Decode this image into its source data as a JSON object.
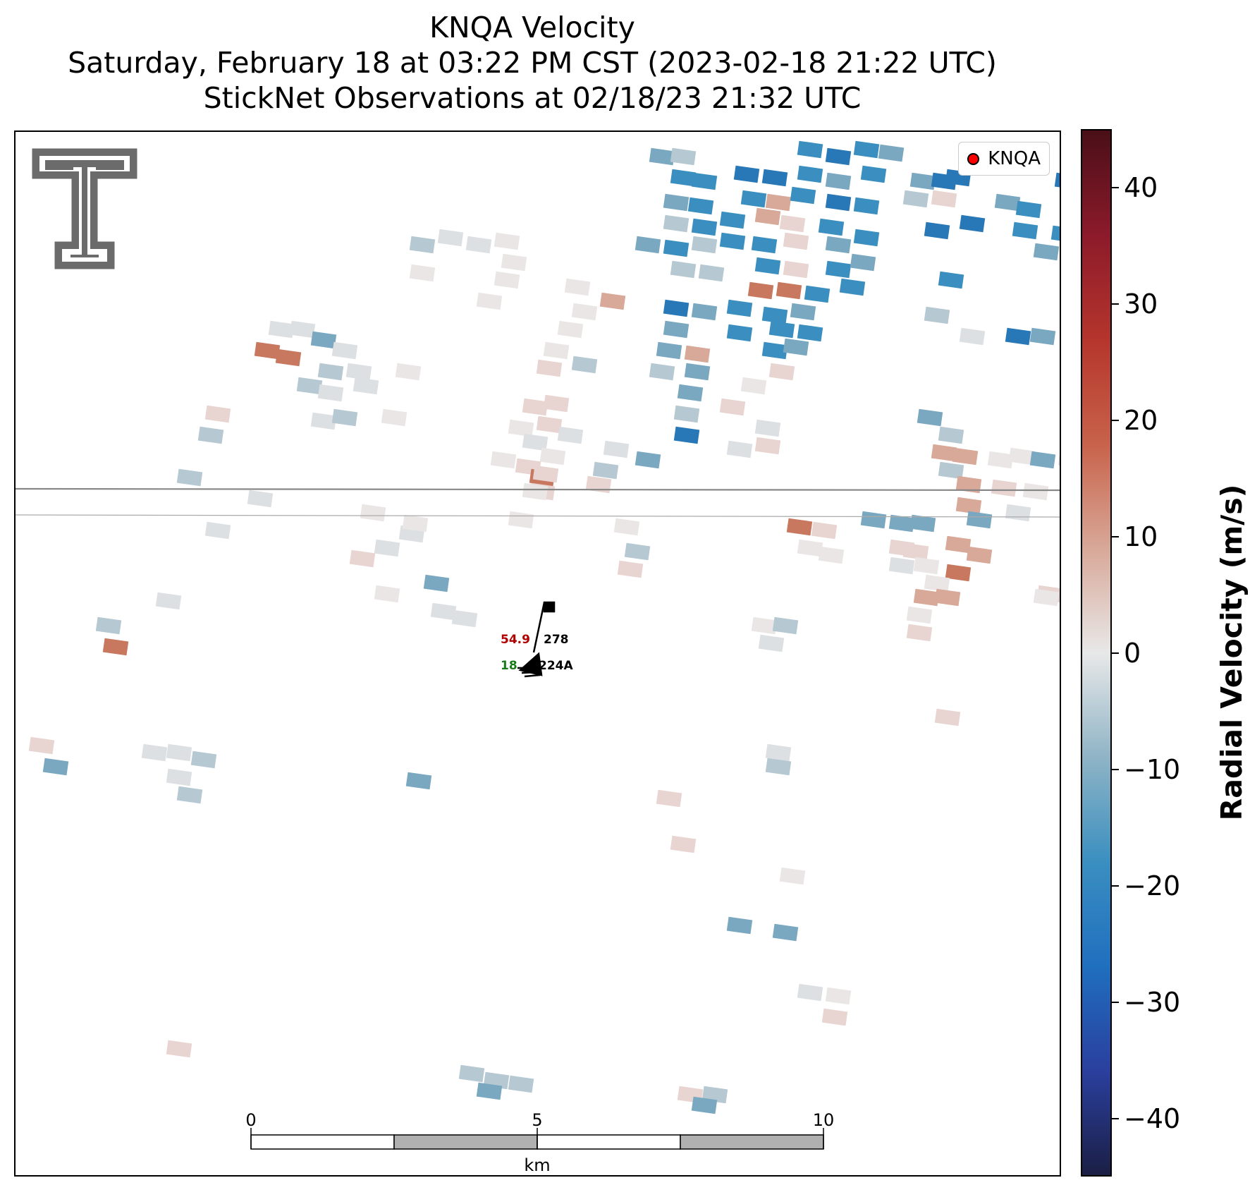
{
  "title": {
    "line1": "KNQA Velocity",
    "line2": "Saturday, February 18 at 03:22 PM CST (2023-02-18 21:22 UTC)",
    "line3": "StickNet Observations at 02/18/23 21:32 UTC"
  },
  "legend": {
    "label": "KNQA",
    "marker_color": "#ff0000"
  },
  "logo": {
    "name": "Texas Tech Double T",
    "color": "#6b6b6b"
  },
  "scale_bar": {
    "tick_labels": [
      "0",
      "5",
      "10"
    ],
    "unit": "km"
  },
  "colorbar": {
    "label": "Radial Velocity (m/s)",
    "vmin": -45,
    "vmax": 45,
    "ticks": [
      "40",
      "30",
      "20",
      "10",
      "0",
      "−10",
      "−20",
      "−30",
      "−40"
    ],
    "colormap_stops": [
      "#1b1f45",
      "#2a3f9e",
      "#1f6fbf",
      "#3a8fc0",
      "#8fb4c6",
      "#e8e8e8",
      "#d8a898",
      "#c8624a",
      "#b5352c",
      "#8c1a2a",
      "#4a0f18"
    ]
  },
  "station": {
    "id": "224A",
    "temperature": "54.9",
    "dewpoint": "18",
    "value_top_right": "278"
  },
  "colors": {
    "boundary": "#7a7a7a",
    "text_red": "#b00000",
    "text_green": "#1a7a1a"
  }
}
